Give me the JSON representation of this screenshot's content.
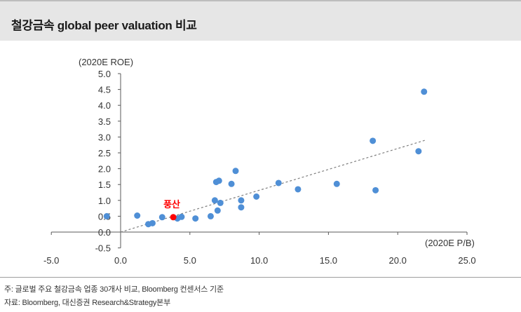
{
  "title": "철강금속 global peer valuation 비교",
  "notes": {
    "line1": "주: 글로벌 주요 철강금속 업종 30개사 비교, Bloomberg 컨센서스 기준",
    "line2": "자료: Bloomberg, 대신증권 Research&Strategy본부"
  },
  "colors": {
    "point": "#4f8fd6",
    "highlight": "#ff0000",
    "trendline": "#7f7f7f",
    "axis": "#595959"
  },
  "chart_data": {
    "type": "scatter",
    "ylabel": "(2020E ROE)",
    "xlabel": "(2020E P/B)",
    "xlim": [
      -5.0,
      25.0
    ],
    "ylim": [
      -0.5,
      5.0
    ],
    "x_ticks": [
      "-5.0",
      "0.0",
      "5.0",
      "10.0",
      "15.0",
      "20.0",
      "25.0"
    ],
    "y_ticks": [
      "-0.5",
      "0.0",
      "0.5",
      "1.0",
      "1.5",
      "2.0",
      "2.5",
      "3.0",
      "3.5",
      "4.0",
      "4.5",
      "5.0"
    ],
    "highlight_label": "풍산",
    "highlight_point": {
      "x": 3.8,
      "y": 0.47
    },
    "trendline": {
      "style": "dashed",
      "from": [
        0.0,
        0.0
      ],
      "to": [
        22.0,
        2.9
      ]
    },
    "points": [
      {
        "x": -1.0,
        "y": 0.5
      },
      {
        "x": 1.2,
        "y": 0.52
      },
      {
        "x": 2.0,
        "y": 0.25
      },
      {
        "x": 2.3,
        "y": 0.28
      },
      {
        "x": 3.0,
        "y": 0.47
      },
      {
        "x": 4.1,
        "y": 0.43
      },
      {
        "x": 4.4,
        "y": 0.48
      },
      {
        "x": 5.4,
        "y": 0.43
      },
      {
        "x": 6.5,
        "y": 0.5
      },
      {
        "x": 6.8,
        "y": 1.0
      },
      {
        "x": 6.9,
        "y": 1.58
      },
      {
        "x": 7.1,
        "y": 1.62
      },
      {
        "x": 7.0,
        "y": 0.68
      },
      {
        "x": 7.2,
        "y": 0.92
      },
      {
        "x": 8.0,
        "y": 1.52
      },
      {
        "x": 8.3,
        "y": 1.93
      },
      {
        "x": 8.7,
        "y": 1.0
      },
      {
        "x": 8.7,
        "y": 0.78
      },
      {
        "x": 9.8,
        "y": 1.12
      },
      {
        "x": 11.4,
        "y": 1.55
      },
      {
        "x": 12.8,
        "y": 1.35
      },
      {
        "x": 15.6,
        "y": 1.52
      },
      {
        "x": 18.2,
        "y": 2.88
      },
      {
        "x": 18.4,
        "y": 1.32
      },
      {
        "x": 21.5,
        "y": 2.55
      },
      {
        "x": 21.9,
        "y": 4.43
      }
    ]
  }
}
